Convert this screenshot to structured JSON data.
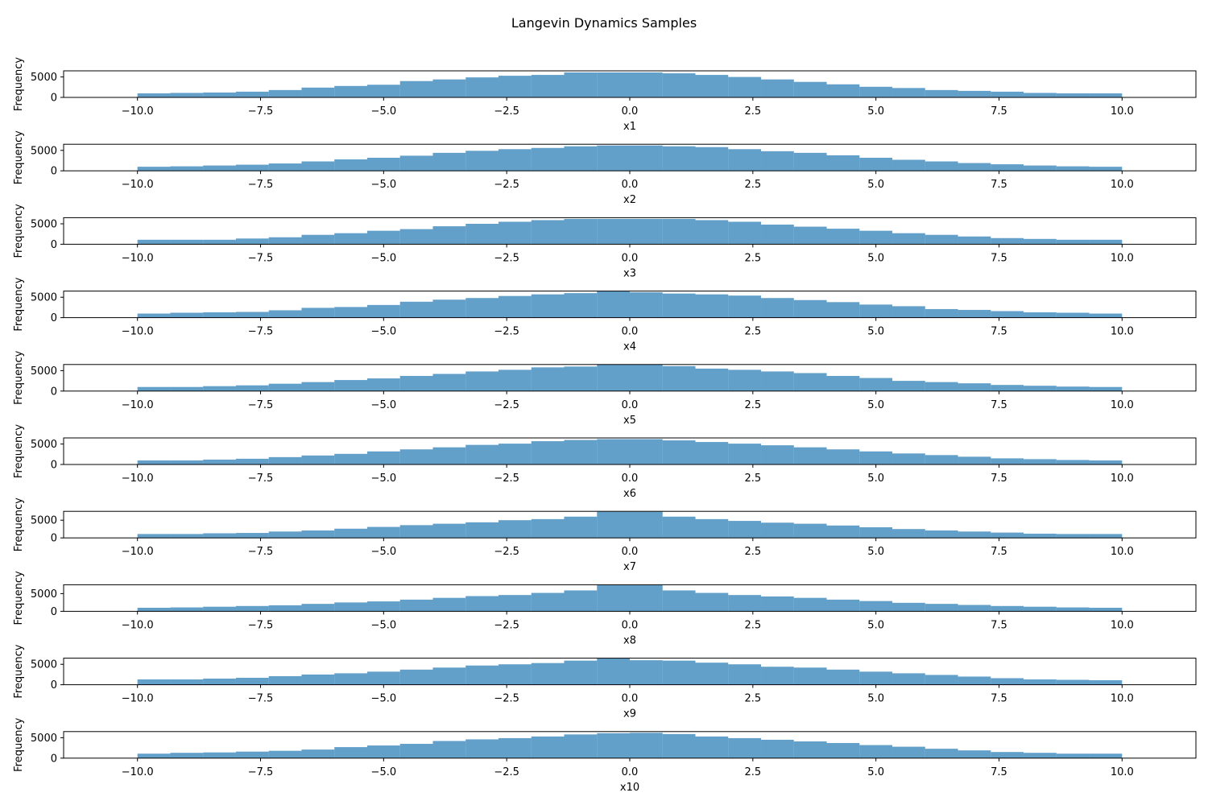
{
  "chart_data": {
    "type": "bar",
    "title": "Langevin Dynamics Samples",
    "xlim": [
      -11.5,
      11.5
    ],
    "xticks": [
      "−10.0",
      "−7.5",
      "−5.0",
      "−2.5",
      "0.0",
      "2.5",
      "5.0",
      "7.5",
      "10.0"
    ],
    "xtick_values": [
      -10,
      -7.5,
      -5,
      -2.5,
      0,
      2.5,
      5,
      7.5,
      10
    ],
    "bins": {
      "start": -10,
      "end": 10,
      "count": 30
    },
    "ylabel": "Frequency",
    "yticks": [
      "0",
      "5000"
    ],
    "ytick_values": [
      0,
      5000
    ],
    "color": "#1f77b4",
    "panels": [
      {
        "xlabel": "x1",
        "ylim": [
          0,
          6500
        ],
        "values": [
          1000,
          1100,
          1200,
          1400,
          1800,
          2400,
          2800,
          3100,
          4000,
          4400,
          4900,
          5300,
          5500,
          6100,
          6100,
          6100,
          5900,
          5500,
          5000,
          4400,
          3800,
          3200,
          2600,
          2300,
          1800,
          1600,
          1400,
          1100,
          1000,
          1000
        ]
      },
      {
        "xlabel": "x2",
        "ylim": [
          0,
          6500
        ],
        "values": [
          1000,
          1100,
          1300,
          1500,
          1800,
          2300,
          2800,
          3200,
          3700,
          4400,
          4900,
          5300,
          5600,
          6000,
          6200,
          6200,
          6000,
          5800,
          5300,
          4800,
          4400,
          3800,
          3200,
          2700,
          2300,
          1900,
          1600,
          1300,
          1100,
          1000
        ]
      },
      {
        "xlabel": "x3",
        "ylim": [
          0,
          6500
        ],
        "values": [
          1100,
          1100,
          1100,
          1400,
          1700,
          2300,
          2700,
          3300,
          3700,
          4400,
          5000,
          5500,
          5900,
          6200,
          6200,
          6200,
          6200,
          5900,
          5500,
          4800,
          4300,
          3800,
          3300,
          2700,
          2300,
          1900,
          1500,
          1300,
          1100,
          1100
        ]
      },
      {
        "xlabel": "x4",
        "ylim": [
          0,
          6500
        ],
        "values": [
          1000,
          1200,
          1300,
          1400,
          1800,
          2400,
          2600,
          3100,
          3900,
          4400,
          4800,
          5300,
          5700,
          6000,
          6500,
          6200,
          5900,
          5700,
          5400,
          4800,
          4300,
          3800,
          3200,
          2800,
          2100,
          1900,
          1600,
          1300,
          1200,
          1000
        ]
      },
      {
        "xlabel": "x5",
        "ylim": [
          0,
          6500
        ],
        "values": [
          1000,
          1000,
          1200,
          1400,
          1800,
          2200,
          2700,
          3100,
          3700,
          4200,
          4800,
          5200,
          5800,
          6000,
          6600,
          6600,
          6100,
          5500,
          5200,
          4800,
          4400,
          3700,
          3200,
          2500,
          2200,
          1900,
          1500,
          1300,
          1100,
          1000
        ]
      },
      {
        "xlabel": "x6",
        "ylim": [
          0,
          6500
        ],
        "values": [
          1000,
          1000,
          1200,
          1400,
          1800,
          2200,
          2600,
          3200,
          3700,
          4200,
          4800,
          5100,
          5700,
          6000,
          6200,
          6200,
          5900,
          5500,
          5100,
          4700,
          4200,
          3700,
          3200,
          2700,
          2300,
          1900,
          1500,
          1300,
          1100,
          1000
        ]
      },
      {
        "xlabel": "x7",
        "ylim": [
          0,
          7500
        ],
        "values": [
          1100,
          1100,
          1300,
          1400,
          1800,
          2100,
          2600,
          3100,
          3600,
          4000,
          4400,
          5000,
          5300,
          6000,
          7400,
          7400,
          6000,
          5300,
          4800,
          4300,
          4000,
          3500,
          3000,
          2500,
          2100,
          1800,
          1500,
          1200,
          1100,
          1100
        ]
      },
      {
        "xlabel": "x8",
        "ylim": [
          0,
          7500
        ],
        "values": [
          1000,
          1100,
          1300,
          1500,
          1700,
          2100,
          2500,
          2800,
          3300,
          3800,
          4300,
          4600,
          5200,
          5900,
          7400,
          7400,
          5900,
          5200,
          4600,
          4200,
          3800,
          3300,
          2900,
          2400,
          2100,
          1800,
          1500,
          1300,
          1100,
          1000
        ]
      },
      {
        "xlabel": "x9",
        "ylim": [
          0,
          6500
        ],
        "values": [
          1300,
          1300,
          1500,
          1700,
          2100,
          2500,
          2800,
          3200,
          3700,
          4200,
          4700,
          5000,
          5300,
          5900,
          6500,
          6000,
          5900,
          5400,
          5000,
          4400,
          4200,
          3700,
          3200,
          2800,
          2400,
          2000,
          1600,
          1300,
          1200,
          1100
        ]
      },
      {
        "xlabel": "x10",
        "ylim": [
          0,
          6500
        ],
        "values": [
          1100,
          1300,
          1400,
          1600,
          1800,
          2100,
          2700,
          3100,
          3500,
          4200,
          4600,
          4900,
          5300,
          5800,
          6100,
          6200,
          5900,
          5300,
          4900,
          4500,
          4100,
          3700,
          3200,
          2800,
          2300,
          1900,
          1500,
          1300,
          1100,
          1100
        ]
      }
    ]
  }
}
